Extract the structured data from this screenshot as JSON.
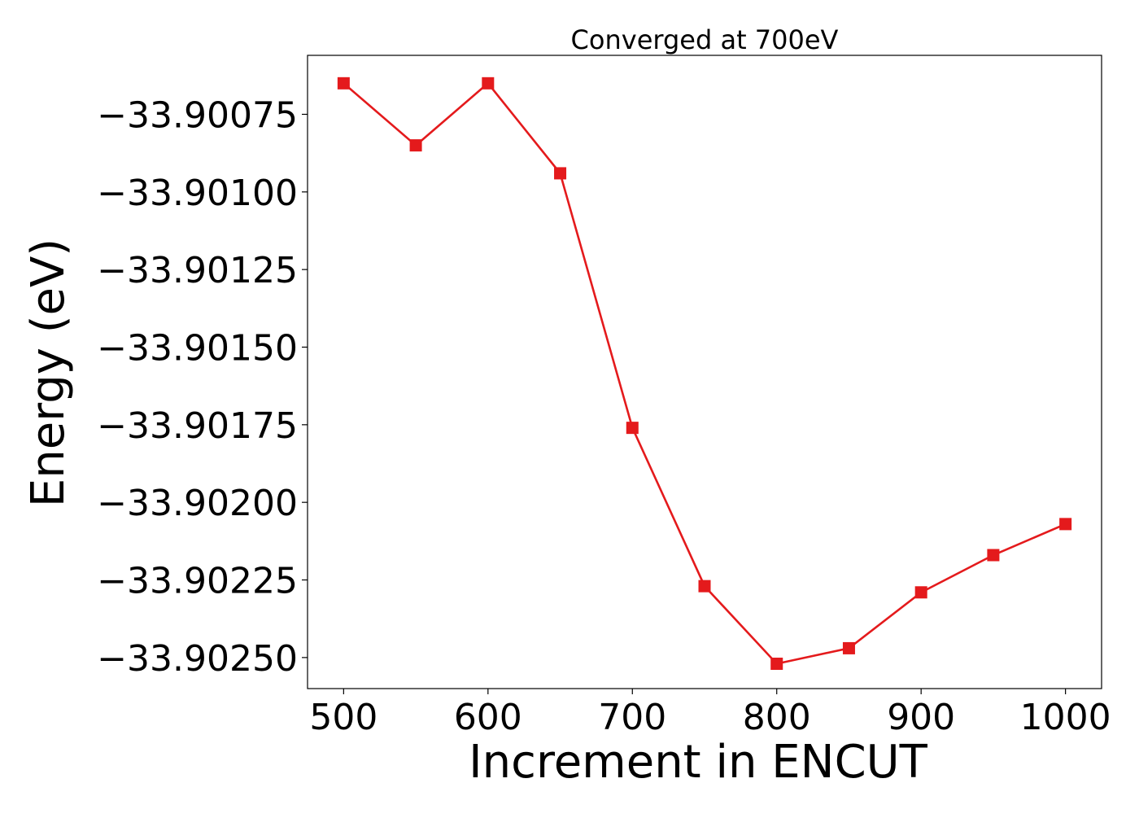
{
  "chart_data": {
    "type": "line",
    "title": "Converged at 700eV",
    "xlabel": "Increment in ENCUT",
    "ylabel": "Energy (eV)",
    "xlim": [
      475,
      1025
    ],
    "ylim": [
      -33.9026,
      -33.90056
    ],
    "x_ticks": [
      500,
      600,
      700,
      800,
      900,
      1000
    ],
    "x_tick_labels": [
      "500",
      "600",
      "700",
      "800",
      "900",
      "1000"
    ],
    "y_ticks": [
      -33.90075,
      -33.901,
      -33.90125,
      -33.9015,
      -33.90175,
      -33.902,
      -33.90225,
      -33.9025
    ],
    "y_tick_labels": [
      "−33.90075",
      "−33.90100",
      "−33.90125",
      "−33.90150",
      "−33.90175",
      "−33.90200",
      "−33.90225",
      "−33.90250"
    ],
    "grid": false,
    "series": [
      {
        "color": "#e41a1c",
        "marker": "square",
        "x": [
          500,
          550,
          600,
          650,
          700,
          750,
          800,
          850,
          900,
          950,
          1000
        ],
        "y": [
          -33.90065,
          -33.90085,
          -33.90065,
          -33.90094,
          -33.90176,
          -33.90227,
          -33.90252,
          -33.90247,
          -33.90229,
          -33.90217,
          -33.90207
        ]
      }
    ]
  }
}
